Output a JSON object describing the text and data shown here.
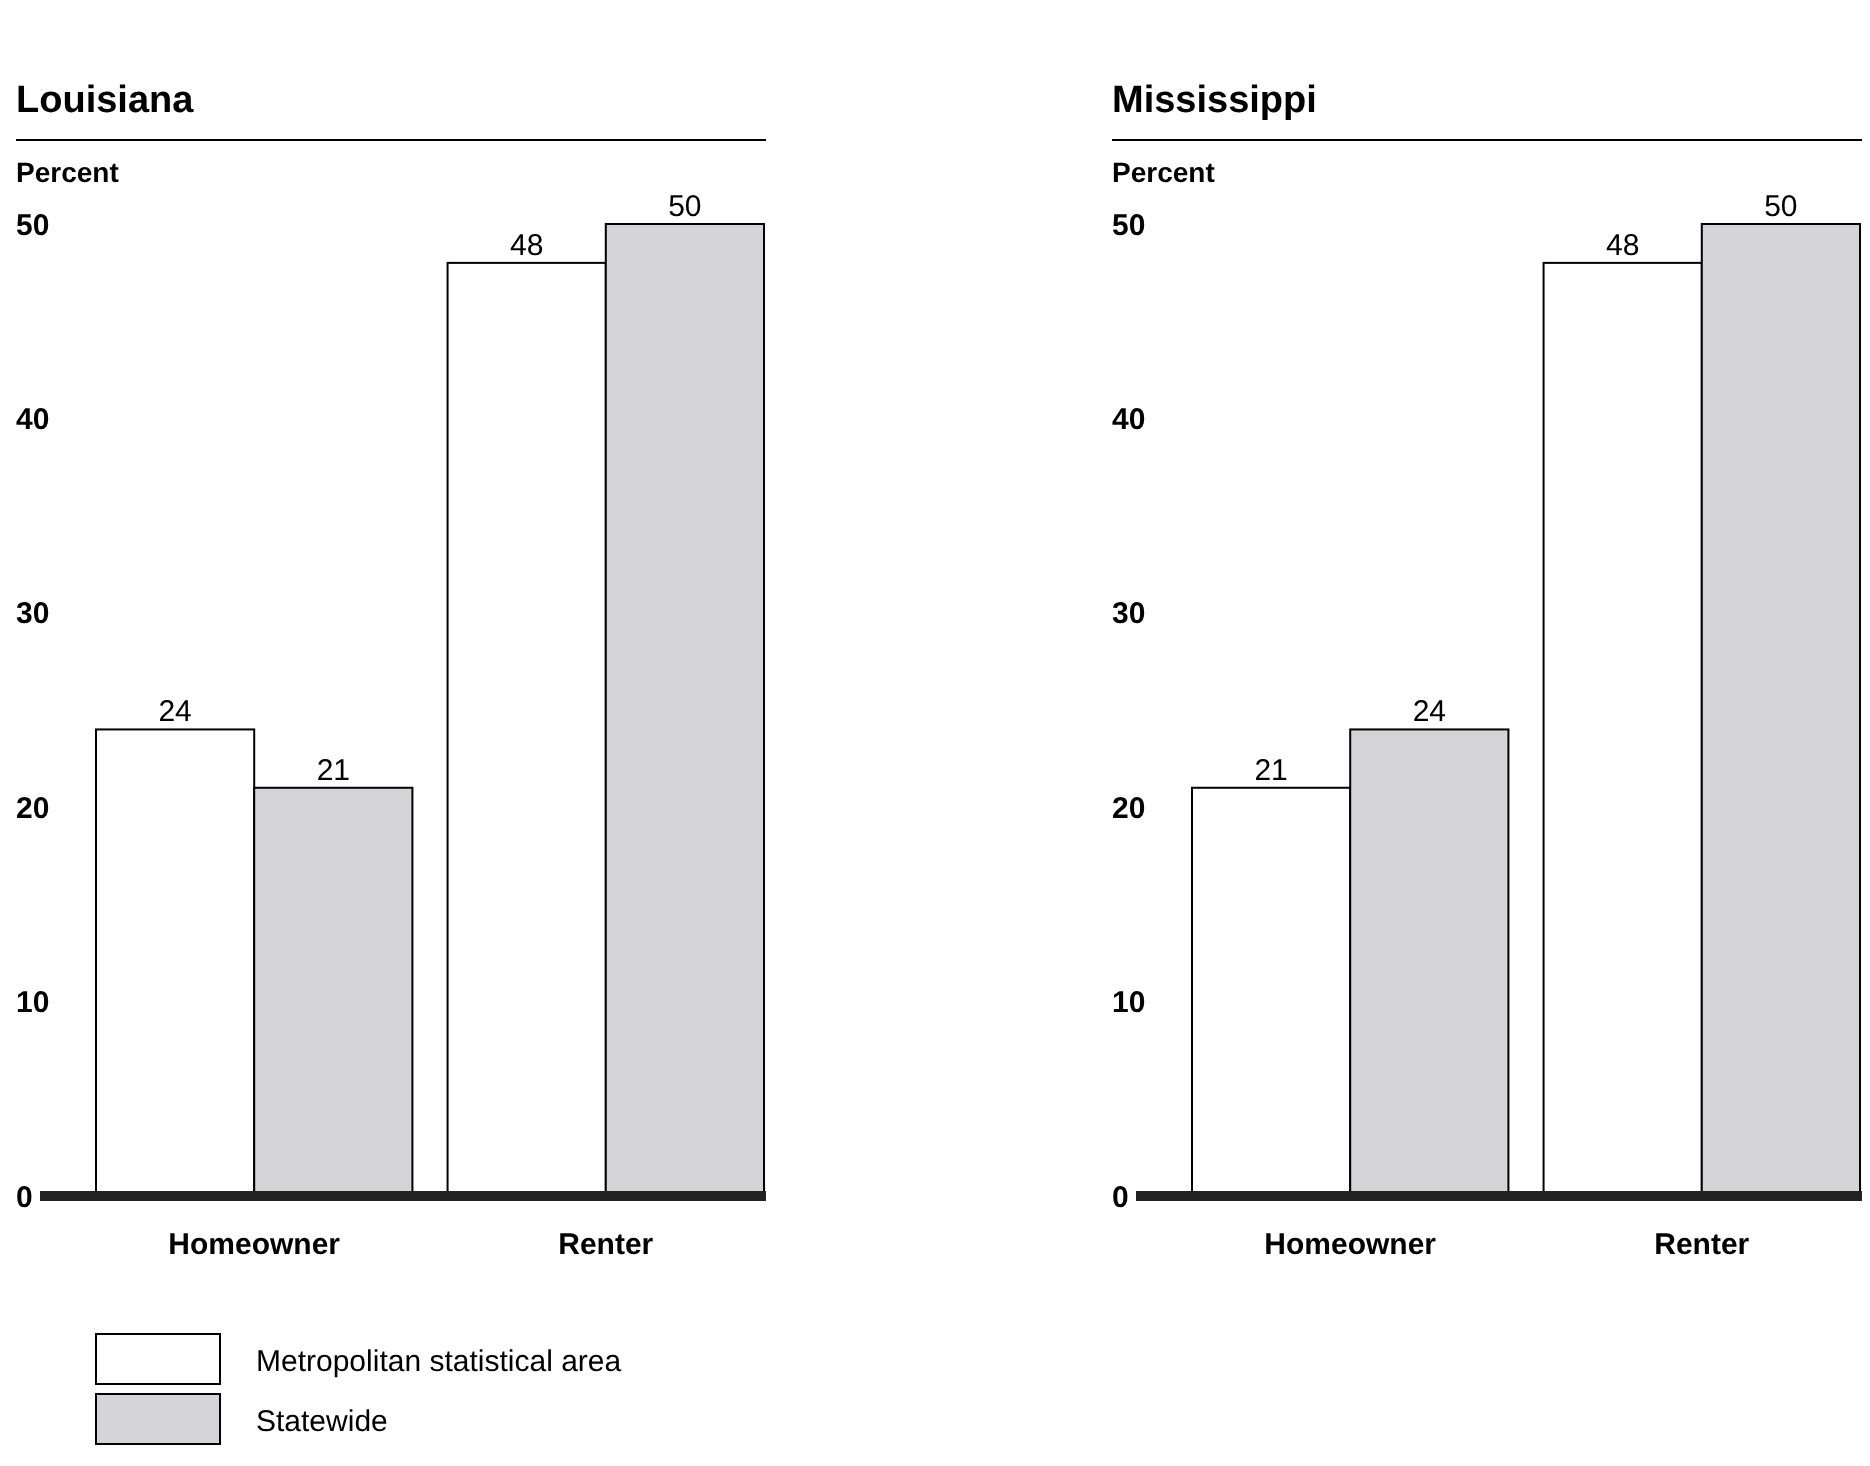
{
  "chart_data": [
    {
      "type": "bar",
      "title": "Louisiana",
      "ylabel": "Percent",
      "categories": [
        "Homeowner",
        "Renter"
      ],
      "series": [
        {
          "name": "Metropolitan statistical area",
          "color": "#ffffff",
          "values": [
            24,
            48
          ]
        },
        {
          "name": "Statewide",
          "color": "#d4d4d6",
          "values": [
            21,
            50
          ]
        }
      ],
      "ylim": [
        0,
        50
      ],
      "yticks": [
        0,
        10,
        20,
        30,
        40,
        50
      ],
      "data_labels": true,
      "legend": "bottom",
      "grid": false
    },
    {
      "type": "bar",
      "title": "Mississippi",
      "ylabel": "Percent",
      "categories": [
        "Homeowner",
        "Renter"
      ],
      "series": [
        {
          "color": "#ffffff",
          "values": [
            21,
            48
          ]
        },
        {
          "color": "#d4d4d6",
          "values": [
            24,
            50
          ]
        }
      ],
      "ylim": [
        0,
        50
      ],
      "yticks": [
        0,
        10,
        20,
        30,
        40,
        50
      ],
      "data_labels": true,
      "legend": false,
      "grid": false
    }
  ]
}
